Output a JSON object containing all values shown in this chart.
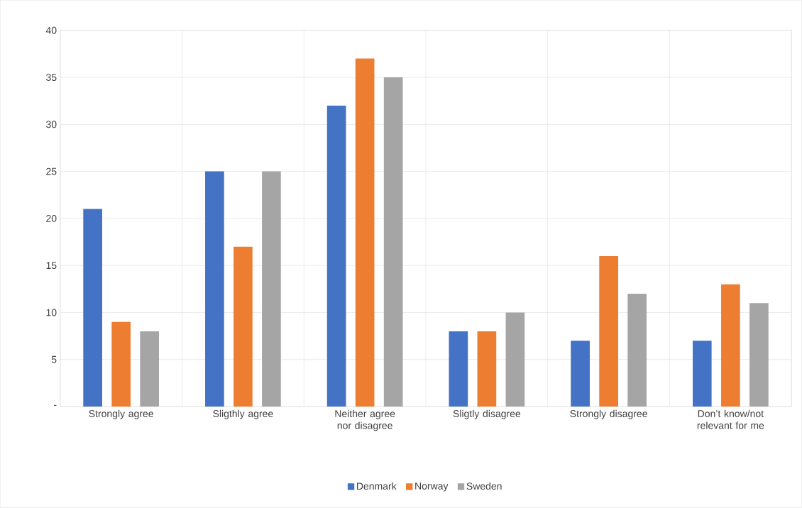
{
  "chart_data": {
    "type": "bar",
    "categories": [
      "Strongly agree",
      "Sligthly agree",
      "Neither agree nor disagree",
      "Sligtly disagree",
      "Strongly disagree",
      "Don’t know/not relevant for me"
    ],
    "series": [
      {
        "name": "Denmark",
        "color": "#4472c4",
        "values": [
          21,
          25,
          32,
          8,
          7,
          7
        ]
      },
      {
        "name": "Norway",
        "color": "#ed7d31",
        "values": [
          9,
          17,
          37,
          8,
          16,
          13
        ]
      },
      {
        "name": "Sweden",
        "color": "#a5a5a5",
        "values": [
          8,
          25,
          35,
          10,
          12,
          11
        ]
      }
    ],
    "ylim": [
      0,
      40
    ],
    "yticks": [
      {
        "value": 0,
        "label": "-"
      },
      5,
      10,
      15,
      20,
      25,
      30,
      35,
      40
    ],
    "grid": true,
    "legend": "bottom"
  }
}
